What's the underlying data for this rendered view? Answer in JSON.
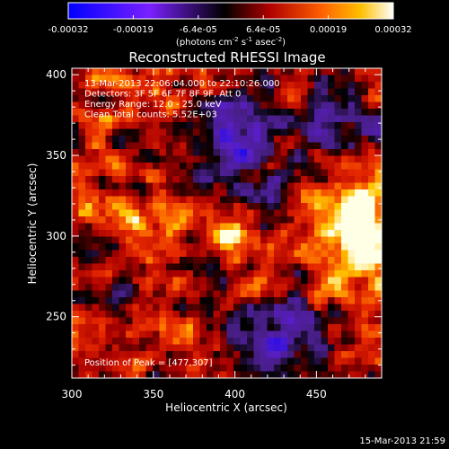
{
  "colorbar": {
    "ticks": [
      "-0.00032",
      "-0.00019",
      "-6.4e-05",
      "6.4e-05",
      "0.00019",
      "0.00032"
    ],
    "unit_prefix": "(photons cm",
    "unit_exp1": "-2",
    "unit_mid": " s",
    "unit_exp2": "-1",
    "unit_mid2": " asec",
    "unit_exp3": "-2",
    "unit_suffix": ")"
  },
  "chart_data": {
    "type": "heatmap",
    "title": "Reconstructed RHESSI Image",
    "xlabel": "Heliocentric X (arcsec)",
    "ylabel": "Heliocentric Y (arcsec)",
    "xlim": [
      300,
      490
    ],
    "ylim": [
      212,
      404
    ],
    "x_ticks": [
      {
        "v": 300,
        "label": "300"
      },
      {
        "v": 350,
        "label": "350"
      },
      {
        "v": 400,
        "label": "400"
      },
      {
        "v": 450,
        "label": "450"
      }
    ],
    "y_ticks": [
      {
        "v": 250,
        "label": "250"
      },
      {
        "v": 300,
        "label": "300"
      },
      {
        "v": 350,
        "label": "350"
      },
      {
        "v": 400,
        "label": "400"
      }
    ],
    "value_range": [
      -0.00032,
      0.00032
    ],
    "peak": [
      477,
      307
    ],
    "annotations": [
      "13-Mar-2013 22:06:04.000 to 22:10:26.000",
      "Detectors: 3F 5F 6F 7F 8F 9F, Att 0",
      "Energy Range: 12.0 - 25.0 keV",
      "Clean     Total counts: 5.52E+03"
    ],
    "peak_label": "Position of Peak = [477,307]"
  },
  "footer_timestamp": "15-Mar-2013 21:59"
}
